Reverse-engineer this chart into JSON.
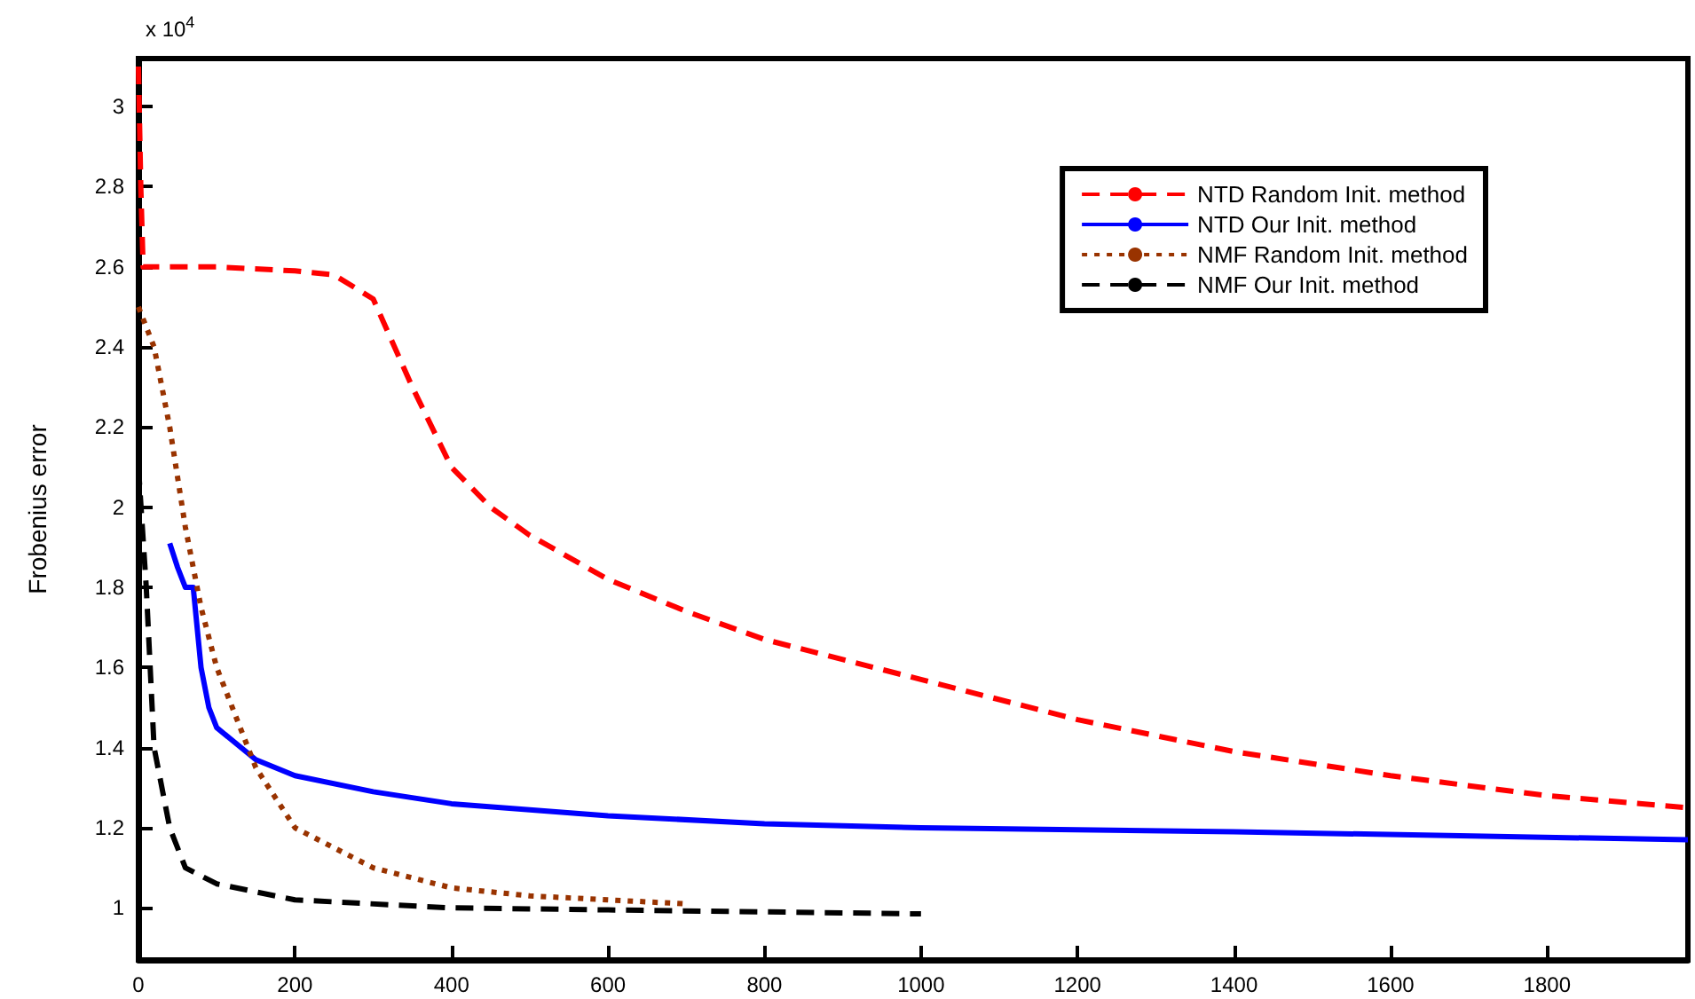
{
  "chart_data": {
    "type": "line",
    "ylabel": "Frobenius error",
    "annotations": [
      "x 10$^{4}$"
    ],
    "xlim": [
      0,
      1980
    ],
    "xticks": [
      0,
      200,
      400,
      600,
      800,
      1000,
      1200,
      1400,
      1600,
      1800
    ],
    "ylim": [
      0.87,
      3.12
    ],
    "yticks": [
      1,
      1.2,
      1.4,
      1.6,
      1.8,
      2,
      2.2,
      2.4,
      2.6,
      2.8,
      3
    ],
    "grid": false,
    "legend": "top right",
    "marker": "none",
    "series": [
      {
        "name": "NTD Random Init. method",
        "color": "#ff0000",
        "line_style": "dashed",
        "x": [
          0,
          3,
          6,
          100,
          200,
          250,
          300,
          350,
          400,
          450,
          500,
          600,
          700,
          800,
          1000,
          1200,
          1400,
          1600,
          1800,
          1980
        ],
        "values": [
          3.1,
          2.8,
          2.6,
          2.6,
          2.59,
          2.58,
          2.52,
          2.3,
          2.1,
          2.0,
          1.93,
          1.82,
          1.74,
          1.67,
          1.57,
          1.47,
          1.39,
          1.33,
          1.28,
          1.25
        ]
      },
      {
        "name": "NTD Our Init. method",
        "color": "#0000ff",
        "line_style": "solid",
        "x": [
          40,
          50,
          60,
          70,
          80,
          90,
          100,
          150,
          200,
          300,
          400,
          600,
          800,
          1000,
          1400,
          1980
        ],
        "values": [
          1.91,
          1.85,
          1.8,
          1.8,
          1.6,
          1.5,
          1.45,
          1.37,
          1.33,
          1.29,
          1.26,
          1.23,
          1.21,
          1.2,
          1.19,
          1.17
        ]
      },
      {
        "name": "NMF Random Init. method",
        "color": "#993300",
        "line_style": "dotted",
        "x": [
          0,
          20,
          40,
          60,
          80,
          100,
          150,
          200,
          300,
          400,
          500,
          600,
          700
        ],
        "values": [
          2.5,
          2.4,
          2.2,
          1.95,
          1.75,
          1.6,
          1.35,
          1.2,
          1.1,
          1.05,
          1.03,
          1.02,
          1.01
        ]
      },
      {
        "name": "NMF Our Init. method",
        "color": "#000000",
        "line_style": "dashed",
        "x": [
          0,
          10,
          20,
          40,
          60,
          100,
          200,
          400,
          600,
          800,
          1000
        ],
        "values": [
          2.1,
          1.8,
          1.4,
          1.2,
          1.1,
          1.06,
          1.02,
          1.0,
          0.995,
          0.99,
          0.985
        ]
      }
    ]
  }
}
